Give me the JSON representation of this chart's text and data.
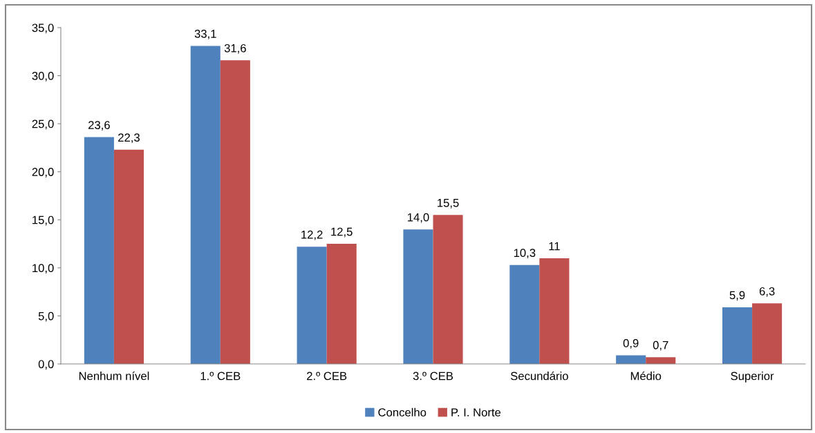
{
  "chart_data": {
    "type": "bar",
    "categories": [
      "Nenhum nível",
      "1.º CEB",
      "2.º CEB",
      "3.º CEB",
      "Secundário",
      "Médio",
      "Superior"
    ],
    "series": [
      {
        "name": "Concelho",
        "color": "#4f81bd",
        "values": [
          23.6,
          33.1,
          12.2,
          14.0,
          10.3,
          0.9,
          5.9
        ],
        "value_labels": [
          "23,6",
          "33,1",
          "12,2",
          "14,0",
          "10,3",
          "0,9",
          "5,9"
        ]
      },
      {
        "name": "P. I. Norte",
        "color": "#c0504d",
        "values": [
          22.3,
          31.6,
          12.5,
          15.5,
          11,
          0.7,
          6.3
        ],
        "value_labels": [
          "22,3",
          "31,6",
          "12,5",
          "15,5",
          "11",
          "0,7",
          "6,3"
        ]
      }
    ],
    "ylim": [
      0,
      35
    ],
    "yticks": [
      {
        "value": 0,
        "label": "0,0"
      },
      {
        "value": 5,
        "label": "5,0"
      },
      {
        "value": 10,
        "label": "10,0"
      },
      {
        "value": 15,
        "label": "15,0"
      },
      {
        "value": 20,
        "label": "20,0"
      },
      {
        "value": 25,
        "label": "25,0"
      },
      {
        "value": 30,
        "label": "30,0"
      },
      {
        "value": 35,
        "label": "35,0"
      }
    ],
    "grid": false,
    "legend": "bottom"
  }
}
